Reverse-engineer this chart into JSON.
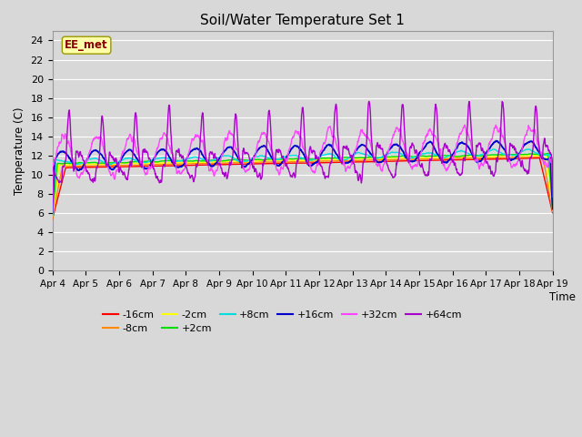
{
  "title": "Soil/Water Temperature Set 1",
  "xlabel": "Time",
  "ylabel": "Temperature (C)",
  "ylim": [
    0,
    25
  ],
  "yticks": [
    0,
    2,
    4,
    6,
    8,
    10,
    12,
    14,
    16,
    18,
    20,
    22,
    24
  ],
  "x_tick_labels": [
    "Apr 4",
    "Apr 5",
    "Apr 6",
    "Apr 7",
    "Apr 8",
    "Apr 9",
    "Apr 10",
    "Apr 11",
    "Apr 12",
    "Apr 13",
    "Apr 14",
    "Apr 15",
    "Apr 16",
    "Apr 17",
    "Apr 18",
    "Apr 19"
  ],
  "series_colors": {
    "-16cm": "#ff0000",
    "-8cm": "#ff8800",
    "-2cm": "#ffff00",
    "+2cm": "#00dd00",
    "+8cm": "#00dddd",
    "+16cm": "#0000cc",
    "+32cm": "#ff44ff",
    "+64cm": "#aa00cc"
  },
  "bg_color": "#d8d8d8",
  "plot_bg_color": "#d8d8d8",
  "watermark_text": "EE_met",
  "watermark_bg": "#ffffaa",
  "watermark_fg": "#880000",
  "n_points": 1500,
  "figsize": [
    6.4,
    4.8
  ],
  "dpi": 100
}
